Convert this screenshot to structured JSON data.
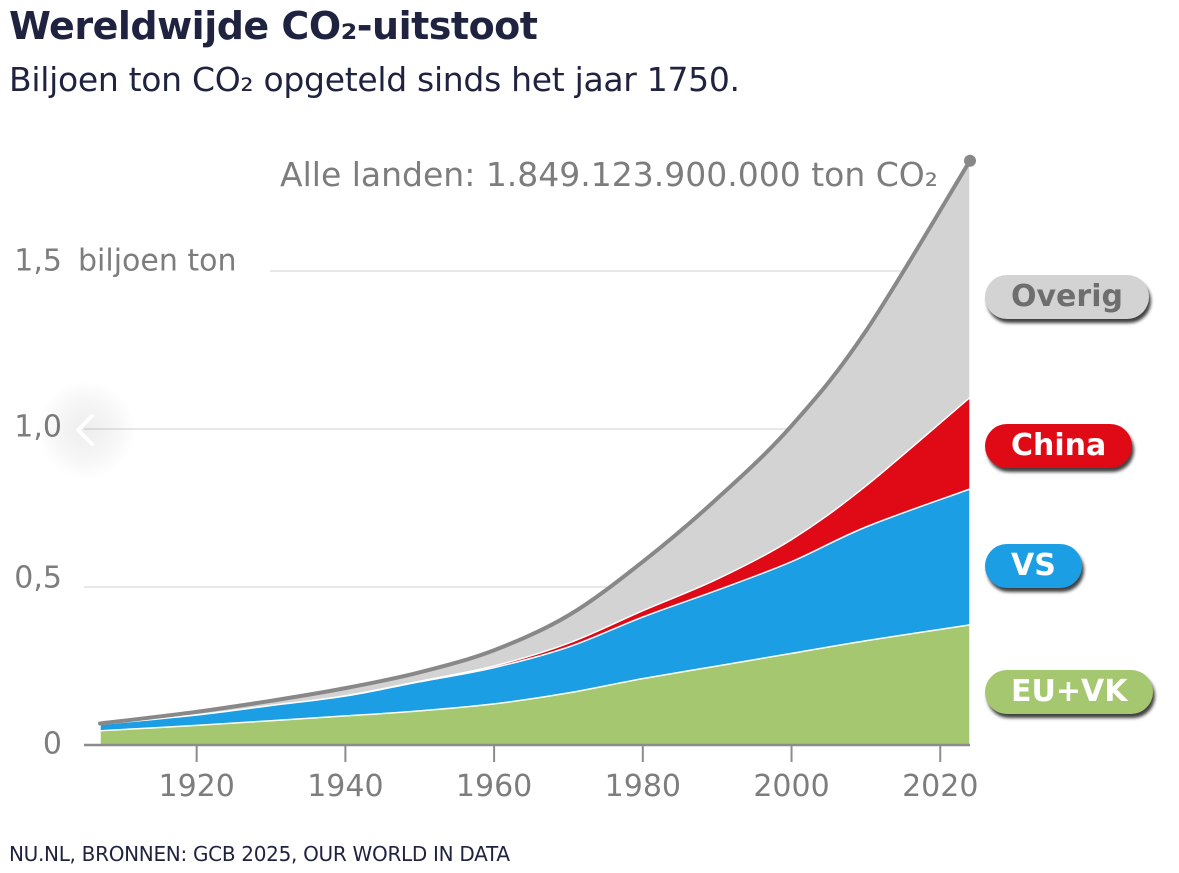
{
  "header": {
    "title": "Wereldwijde CO₂-uitstoot",
    "subtitle": "Biljoen ton CO₂ opgeteld sinds het jaar 1750."
  },
  "footer": {
    "source": "NU.NL, BRONNEN: GCB 2025, OUR WORLD IN DATA"
  },
  "navigation": {
    "prev_icon": "chevron-left-icon"
  },
  "chart_data": {
    "type": "area",
    "stacked": true,
    "title": "Wereldwijde CO₂-uitstoot",
    "subtitle": "Biljoen ton CO₂ opgeteld sinds het jaar 1750.",
    "xlabel": "",
    "ylabel": "biljoen ton",
    "xlim": [
      1907,
      2024
    ],
    "ylim": [
      0,
      1.85
    ],
    "grid": true,
    "x_ticks": [
      1920,
      1940,
      1960,
      1980,
      2000,
      2020
    ],
    "x_tick_labels": [
      "1920",
      "1940",
      "1960",
      "1980",
      "2000",
      "2020"
    ],
    "y_ticks": [
      0,
      0.5,
      1.0,
      1.5
    ],
    "y_tick_labels": [
      "0",
      "0,5",
      "1,0",
      "1,5"
    ],
    "y_unit_label": "biljoen ton",
    "legend_placement": "right",
    "annotation": {
      "text": "Alle landen: 1.849.123.900.000 ton CO₂",
      "x": 2024,
      "y": 1.849
    },
    "x": [
      1907,
      1920,
      1930,
      1940,
      1950,
      1960,
      1970,
      1980,
      1990,
      2000,
      2010,
      2024
    ],
    "series": [
      {
        "name": "EU+VK",
        "color": "#a5c76f",
        "text_color": "#ffffff",
        "values": [
          0.045,
          0.062,
          0.077,
          0.092,
          0.108,
          0.13,
          0.165,
          0.21,
          0.25,
          0.29,
          0.33,
          0.38
        ]
      },
      {
        "name": "VS",
        "color": "#1c9ee5",
        "text_color": "#ffffff",
        "values": [
          0.02,
          0.033,
          0.048,
          0.063,
          0.092,
          0.115,
          0.145,
          0.195,
          0.24,
          0.29,
          0.36,
          0.43
        ]
      },
      {
        "name": "China",
        "color": "#e00a17",
        "text_color": "#ffffff",
        "values": [
          0.0,
          0.0,
          0.0,
          0.001,
          0.002,
          0.005,
          0.012,
          0.02,
          0.035,
          0.07,
          0.13,
          0.29
        ]
      },
      {
        "name": "Overig",
        "color": "#d3d3d3",
        "text_color": "#6e6e6e",
        "values": [
          0.003,
          0.01,
          0.015,
          0.024,
          0.028,
          0.05,
          0.088,
          0.155,
          0.255,
          0.36,
          0.49,
          0.749
        ]
      }
    ],
    "total_line": {
      "name": "Alle landen",
      "color": "#888888",
      "values": [
        0.068,
        0.105,
        0.14,
        0.18,
        0.23,
        0.3,
        0.41,
        0.58,
        0.78,
        1.01,
        1.31,
        1.849
      ]
    }
  }
}
